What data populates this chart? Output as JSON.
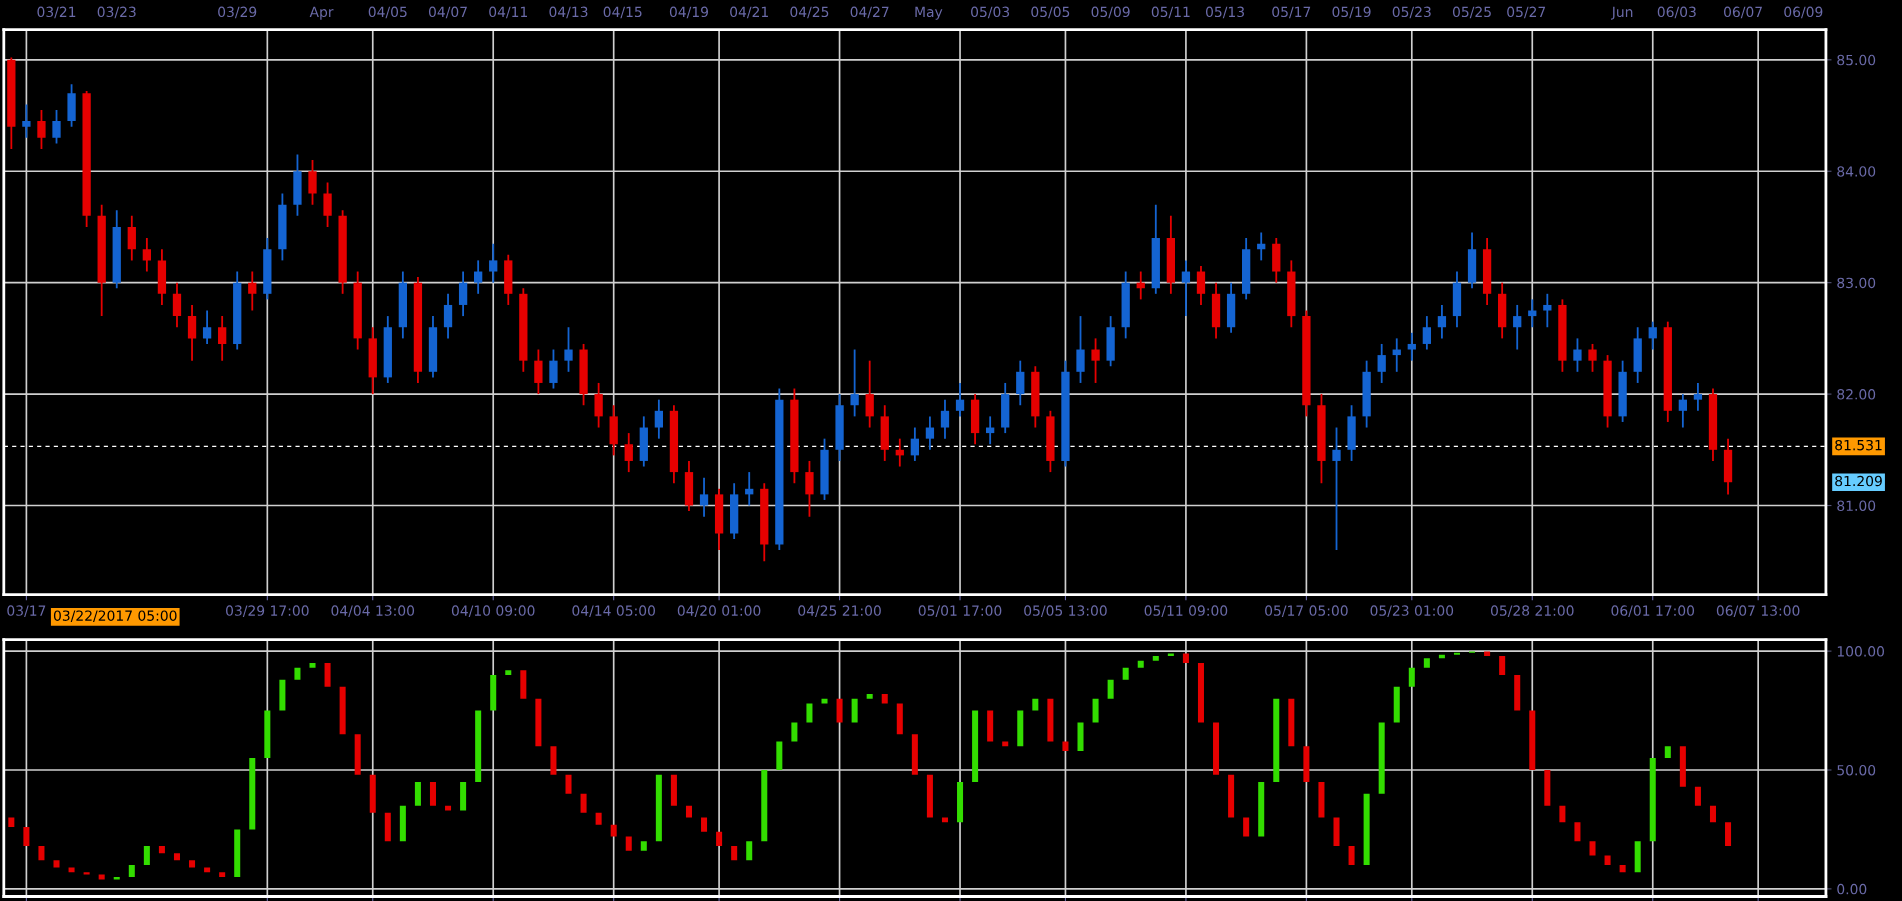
{
  "chart_data": [
    {
      "type": "candlestick",
      "grid": true,
      "categories": [
        null,
        "03/17",
        null,
        null,
        null,
        null,
        null,
        null,
        null,
        null,
        null,
        null,
        null,
        null,
        null,
        null,
        null,
        "03/29 17:00",
        null,
        null,
        null,
        null,
        null,
        null,
        "04/04 13:00",
        null,
        null,
        null,
        null,
        null,
        null,
        null,
        "04/10 09:00",
        null,
        null,
        null,
        null,
        null,
        null,
        null,
        "04/14 05:00",
        null,
        null,
        null,
        null,
        null,
        null,
        "04/20 01:00",
        null,
        null,
        null,
        null,
        null,
        null,
        null,
        "04/25 21:00",
        null,
        null,
        null,
        null,
        null,
        null,
        null,
        "05/01 17:00",
        null,
        null,
        null,
        null,
        null,
        null,
        "05/05 13:00",
        null,
        null,
        null,
        null,
        null,
        null,
        null,
        "05/11 09:00",
        null,
        null,
        null,
        null,
        null,
        null,
        null,
        "05/17 05:00",
        null,
        null,
        null,
        null,
        null,
        null,
        "05/23 01:00",
        null,
        null,
        null,
        null,
        null,
        null,
        null,
        "05/28 21:00",
        null,
        null,
        null,
        null,
        null,
        null,
        null,
        "06/01 17:00",
        null,
        null,
        null,
        null,
        null,
        null,
        "06/07 13:00",
        null,
        null,
        null,
        null
      ],
      "ohlc": [
        [
          85.0,
          85.02,
          84.2,
          84.4
        ],
        [
          84.4,
          84.6,
          84.3,
          84.45
        ],
        [
          84.45,
          84.55,
          84.2,
          84.3
        ],
        [
          84.3,
          84.55,
          84.25,
          84.45
        ],
        [
          84.45,
          84.78,
          84.4,
          84.7
        ],
        [
          84.7,
          84.72,
          83.5,
          83.6
        ],
        [
          83.6,
          83.7,
          82.7,
          83.0
        ],
        [
          83.0,
          83.65,
          82.95,
          83.5
        ],
        [
          83.5,
          83.6,
          83.2,
          83.3
        ],
        [
          83.3,
          83.4,
          83.1,
          83.2
        ],
        [
          83.2,
          83.3,
          82.8,
          82.9
        ],
        [
          82.9,
          83.0,
          82.6,
          82.7
        ],
        [
          82.7,
          82.8,
          82.3,
          82.5
        ],
        [
          82.5,
          82.75,
          82.45,
          82.6
        ],
        [
          82.6,
          82.7,
          82.3,
          82.45
        ],
        [
          82.45,
          83.1,
          82.4,
          83.0
        ],
        [
          83.0,
          83.1,
          82.75,
          82.9
        ],
        [
          82.9,
          83.4,
          82.85,
          83.3
        ],
        [
          83.3,
          83.8,
          83.2,
          83.7
        ],
        [
          83.7,
          84.15,
          83.6,
          84.0
        ],
        [
          84.0,
          84.1,
          83.7,
          83.8
        ],
        [
          83.8,
          83.9,
          83.5,
          83.6
        ],
        [
          83.6,
          83.65,
          82.9,
          83.0
        ],
        [
          83.0,
          83.1,
          82.4,
          82.5
        ],
        [
          82.5,
          82.6,
          82.0,
          82.15
        ],
        [
          82.15,
          82.7,
          82.1,
          82.6
        ],
        [
          82.6,
          83.1,
          82.5,
          83.0
        ],
        [
          83.0,
          83.05,
          82.1,
          82.2
        ],
        [
          82.2,
          82.7,
          82.15,
          82.6
        ],
        [
          82.6,
          82.9,
          82.5,
          82.8
        ],
        [
          82.8,
          83.1,
          82.7,
          83.0
        ],
        [
          83.0,
          83.2,
          82.9,
          83.1
        ],
        [
          83.1,
          83.35,
          83.0,
          83.2
        ],
        [
          83.2,
          83.25,
          82.8,
          82.9
        ],
        [
          82.9,
          82.95,
          82.2,
          82.3
        ],
        [
          82.3,
          82.4,
          82.0,
          82.1
        ],
        [
          82.1,
          82.4,
          82.05,
          82.3
        ],
        [
          82.3,
          82.6,
          82.2,
          82.4
        ],
        [
          82.4,
          82.45,
          81.9,
          82.0
        ],
        [
          82.0,
          82.1,
          81.7,
          81.8
        ],
        [
          81.8,
          81.9,
          81.45,
          81.55
        ],
        [
          81.55,
          81.65,
          81.3,
          81.4
        ],
        [
          81.4,
          81.8,
          81.35,
          81.7
        ],
        [
          81.7,
          81.95,
          81.6,
          81.85
        ],
        [
          81.85,
          81.9,
          81.2,
          81.3
        ],
        [
          81.3,
          81.4,
          80.95,
          81.0
        ],
        [
          81.0,
          81.25,
          80.9,
          81.1
        ],
        [
          81.1,
          81.15,
          80.6,
          80.75
        ],
        [
          80.75,
          81.2,
          80.7,
          81.1
        ],
        [
          81.1,
          81.3,
          81.0,
          81.15
        ],
        [
          81.15,
          81.2,
          80.5,
          80.65
        ],
        [
          80.65,
          82.05,
          80.6,
          81.95
        ],
        [
          81.95,
          82.05,
          81.2,
          81.3
        ],
        [
          81.3,
          81.4,
          80.9,
          81.1
        ],
        [
          81.1,
          81.6,
          81.05,
          81.5
        ],
        [
          81.5,
          82.0,
          81.4,
          81.9
        ],
        [
          81.9,
          82.4,
          81.8,
          82.0
        ],
        [
          82.0,
          82.3,
          81.7,
          81.8
        ],
        [
          81.8,
          81.9,
          81.4,
          81.5
        ],
        [
          81.5,
          81.6,
          81.35,
          81.45
        ],
        [
          81.45,
          81.7,
          81.4,
          81.6
        ],
        [
          81.6,
          81.8,
          81.5,
          81.7
        ],
        [
          81.7,
          81.95,
          81.6,
          81.85
        ],
        [
          81.85,
          82.1,
          81.8,
          81.95
        ],
        [
          81.95,
          82.0,
          81.55,
          81.65
        ],
        [
          81.65,
          81.8,
          81.55,
          81.7
        ],
        [
          81.7,
          82.1,
          81.65,
          82.0
        ],
        [
          82.0,
          82.3,
          81.9,
          82.2
        ],
        [
          82.2,
          82.25,
          81.7,
          81.8
        ],
        [
          81.8,
          81.85,
          81.3,
          81.4
        ],
        [
          81.4,
          82.3,
          81.35,
          82.2
        ],
        [
          82.2,
          82.7,
          82.1,
          82.4
        ],
        [
          82.4,
          82.5,
          82.1,
          82.3
        ],
        [
          82.3,
          82.7,
          82.25,
          82.6
        ],
        [
          82.6,
          83.1,
          82.5,
          83.0
        ],
        [
          83.0,
          83.1,
          82.85,
          82.95
        ],
        [
          82.95,
          83.7,
          82.9,
          83.4
        ],
        [
          83.4,
          83.6,
          82.9,
          83.0
        ],
        [
          83.0,
          83.2,
          82.7,
          83.1
        ],
        [
          83.1,
          83.15,
          82.8,
          82.9
        ],
        [
          82.9,
          83.0,
          82.5,
          82.6
        ],
        [
          82.6,
          83.0,
          82.55,
          82.9
        ],
        [
          82.9,
          83.4,
          82.85,
          83.3
        ],
        [
          83.3,
          83.45,
          83.2,
          83.35
        ],
        [
          83.35,
          83.4,
          83.0,
          83.1
        ],
        [
          83.1,
          83.2,
          82.6,
          82.7
        ],
        [
          82.7,
          82.75,
          81.8,
          81.9
        ],
        [
          81.9,
          82.0,
          81.2,
          81.4
        ],
        [
          81.4,
          81.7,
          80.6,
          81.5
        ],
        [
          81.5,
          81.9,
          81.4,
          81.8
        ],
        [
          81.8,
          82.3,
          81.7,
          82.2
        ],
        [
          82.2,
          82.45,
          82.1,
          82.35
        ],
        [
          82.35,
          82.5,
          82.2,
          82.4
        ],
        [
          82.4,
          82.55,
          82.3,
          82.45
        ],
        [
          82.45,
          82.7,
          82.4,
          82.6
        ],
        [
          82.6,
          82.8,
          82.5,
          82.7
        ],
        [
          82.7,
          83.1,
          82.6,
          83.0
        ],
        [
          83.0,
          83.45,
          82.95,
          83.3
        ],
        [
          83.3,
          83.4,
          82.8,
          82.9
        ],
        [
          82.9,
          83.0,
          82.5,
          82.6
        ],
        [
          82.6,
          82.8,
          82.4,
          82.7
        ],
        [
          82.7,
          82.85,
          82.6,
          82.75
        ],
        [
          82.75,
          82.9,
          82.6,
          82.8
        ],
        [
          82.8,
          82.85,
          82.2,
          82.3
        ],
        [
          82.3,
          82.5,
          82.2,
          82.4
        ],
        [
          82.4,
          82.45,
          82.2,
          82.3
        ],
        [
          82.3,
          82.35,
          81.7,
          81.8
        ],
        [
          81.8,
          82.3,
          81.75,
          82.2
        ],
        [
          82.2,
          82.6,
          82.1,
          82.5
        ],
        [
          82.5,
          82.65,
          82.4,
          82.6
        ],
        [
          82.6,
          82.65,
          81.75,
          81.85
        ],
        [
          81.85,
          82.0,
          81.7,
          81.95
        ],
        [
          81.95,
          82.1,
          81.85,
          82.0
        ],
        [
          82.0,
          82.05,
          81.4,
          81.5
        ],
        [
          81.5,
          81.6,
          81.1,
          81.209
        ],
        null,
        null,
        null,
        null,
        null,
        null
      ],
      "colors": [
        "#e60000",
        "#1464d2",
        "#e60000",
        "#1464d2",
        "#1464d2",
        "#e60000",
        "#e60000",
        "#1464d2",
        "#e60000",
        "#e60000",
        "#e60000",
        "#e60000",
        "#e60000",
        "#1464d2",
        "#e60000",
        "#1464d2",
        "#e60000",
        "#1464d2",
        "#1464d2",
        "#1464d2",
        "#e60000",
        "#e60000",
        "#e60000",
        "#e60000",
        "#e60000",
        "#1464d2",
        "#1464d2",
        "#e60000",
        "#1464d2",
        "#1464d2",
        "#1464d2",
        "#1464d2",
        "#1464d2",
        "#e60000",
        "#e60000",
        "#e60000",
        "#1464d2",
        "#1464d2",
        "#e60000",
        "#e60000",
        "#e60000",
        "#e60000",
        "#1464d2",
        "#1464d2",
        "#e60000",
        "#e60000",
        "#1464d2",
        "#e60000",
        "#1464d2",
        "#1464d2",
        "#e60000",
        "#1464d2",
        "#e60000",
        "#e60000",
        "#1464d2",
        "#1464d2",
        "#1464d2",
        "#e60000",
        "#e60000",
        "#e60000",
        "#1464d2",
        "#1464d2",
        "#1464d2",
        "#1464d2",
        "#e60000",
        "#1464d2",
        "#1464d2",
        "#1464d2",
        "#e60000",
        "#e60000",
        "#1464d2",
        "#1464d2",
        "#e60000",
        "#1464d2",
        "#1464d2",
        "#e60000",
        "#1464d2",
        "#e60000",
        "#1464d2",
        "#e60000",
        "#e60000",
        "#1464d2",
        "#1464d2",
        "#1464d2",
        "#e60000",
        "#e60000",
        "#e60000",
        "#e60000",
        "#1464d2",
        "#1464d2",
        "#1464d2",
        "#1464d2",
        "#1464d2",
        "#1464d2",
        "#1464d2",
        "#1464d2",
        "#1464d2",
        "#1464d2",
        "#e60000",
        "#e60000",
        "#1464d2",
        "#1464d2",
        "#1464d2",
        "#e60000",
        "#1464d2",
        "#e60000",
        "#e60000",
        "#1464d2",
        "#1464d2",
        "#1464d2",
        "#e60000",
        "#1464d2",
        "#1464d2",
        "#e60000",
        "#e60000",
        null,
        null,
        null,
        null,
        null,
        null
      ],
      "ylim": [
        80.2,
        85.27
      ],
      "yticks": [
        {
          "value": 81,
          "label": "81.00"
        },
        {
          "value": 82,
          "label": "82.00"
        },
        {
          "value": 83,
          "label": "83.00"
        },
        {
          "value": 84,
          "label": "84.00"
        },
        {
          "value": 85,
          "label": "85.00"
        }
      ],
      "ref_lines": [
        {
          "axis": "y",
          "value": 81.531,
          "label": "81.531",
          "color": "#ffffff",
          "line_style": "dashed"
        }
      ],
      "annotations": [
        "03/22/2017 05:00",
        "81.209",
        "03/21",
        "03/23",
        "03/29",
        "Apr",
        "04/05",
        "04/07",
        "04/11",
        "04/13",
        "04/15",
        "04/19",
        "04/21",
        "04/25",
        "04/27",
        "May",
        "05/03",
        "05/05",
        "05/09",
        "05/11",
        "05/13",
        "05/17",
        "05/19",
        "05/23",
        "05/25",
        "05/27",
        "Jun",
        "06/03",
        "06/07",
        "06/09"
      ]
    },
    {
      "type": "bar",
      "grid": true,
      "tick_labels": "y",
      "categories": [
        null,
        null,
        null,
        null,
        null,
        null,
        null,
        null,
        null,
        null,
        null,
        null,
        null,
        null,
        null,
        null,
        null,
        null,
        null,
        null,
        null,
        null,
        null,
        null,
        null,
        null,
        null,
        null,
        null,
        null,
        null,
        null,
        null,
        null,
        null,
        null,
        null,
        null,
        null,
        null,
        null,
        null,
        null,
        null,
        null,
        null,
        null,
        null,
        null,
        null,
        null,
        null,
        null,
        null,
        null,
        null,
        null,
        null,
        null,
        null,
        null,
        null,
        null,
        null,
        null,
        null,
        null,
        null,
        null,
        null,
        null,
        null,
        null,
        null,
        null,
        null,
        null,
        null,
        null,
        null,
        null,
        null,
        null,
        null,
        null,
        null,
        null,
        null,
        null,
        null,
        null,
        null,
        null,
        null,
        null,
        null,
        null,
        null,
        null,
        null,
        null,
        null,
        null,
        null,
        null,
        null,
        null,
        null,
        null,
        null,
        null,
        null,
        null,
        null,
        null,
        null,
        null,
        null,
        null,
        null,
        null
      ],
      "base": [
        30,
        26,
        18,
        12,
        9,
        7,
        6,
        4,
        5,
        10,
        18,
        15,
        12,
        9,
        7,
        5,
        25,
        55,
        75,
        88,
        93,
        95,
        85,
        65,
        48,
        32,
        20,
        35,
        45,
        35,
        33,
        45,
        75,
        90,
        92,
        80,
        60,
        48,
        40,
        32,
        27,
        22,
        16,
        20,
        48,
        35,
        30,
        24,
        18,
        12,
        20,
        50,
        62,
        70,
        78,
        80,
        70,
        80,
        82,
        78,
        65,
        48,
        30,
        28,
        45,
        75,
        62,
        60,
        75,
        80,
        62,
        58,
        70,
        80,
        88,
        93,
        96,
        98,
        99,
        95,
        70,
        48,
        30,
        22,
        45,
        80,
        60,
        45,
        30,
        18,
        10,
        40,
        70,
        85,
        93,
        97,
        98.5,
        99.3,
        99.8,
        98,
        90,
        75,
        50,
        35,
        28,
        20,
        14,
        10,
        7,
        20,
        55,
        60,
        43,
        35,
        28,
        null,
        null,
        null,
        null,
        null,
        null
      ],
      "values": [
        -4,
        -8,
        -6,
        -3,
        -2,
        -1,
        -2,
        1,
        5,
        8,
        -3,
        -3,
        -3,
        -2,
        -2,
        20,
        30,
        20,
        13,
        5,
        2,
        -10,
        -20,
        -17,
        -16,
        -12,
        15,
        10,
        -10,
        -2,
        12,
        30,
        15,
        2,
        -12,
        -20,
        -12,
        -8,
        -8,
        -5,
        -5,
        -6,
        4,
        28,
        -13,
        -5,
        -6,
        -6,
        -6,
        8,
        30,
        12,
        8,
        8,
        2,
        -10,
        10,
        2,
        -4,
        -13,
        -17,
        -18,
        -2,
        17,
        30,
        -13,
        -2,
        15,
        5,
        -18,
        -4,
        12,
        10,
        8,
        5,
        3,
        2,
        1,
        -4,
        -25,
        -22,
        -18,
        -8,
        23,
        35,
        -20,
        -15,
        -15,
        -12,
        -8,
        30,
        30,
        15,
        8,
        4,
        1.5,
        0.8,
        0.5,
        -1.8,
        -8,
        -15,
        -25,
        -15,
        -7,
        -8,
        -6,
        -4,
        -3,
        13,
        35,
        5,
        -17,
        -8,
        -7,
        -10,
        null,
        null,
        null,
        null,
        null,
        null
      ],
      "colors": [
        "#e60000",
        "#e60000",
        "#e60000",
        "#e60000",
        "#e60000",
        "#e60000",
        "#e60000",
        "#33dd00",
        "#33dd00",
        "#33dd00",
        "#e60000",
        "#e60000",
        "#e60000",
        "#e60000",
        "#e60000",
        "#33dd00",
        "#33dd00",
        "#33dd00",
        "#33dd00",
        "#33dd00",
        "#33dd00",
        "#e60000",
        "#e60000",
        "#e60000",
        "#e60000",
        "#e60000",
        "#33dd00",
        "#33dd00",
        "#e60000",
        "#e60000",
        "#33dd00",
        "#33dd00",
        "#33dd00",
        "#33dd00",
        "#e60000",
        "#e60000",
        "#e60000",
        "#e60000",
        "#e60000",
        "#e60000",
        "#e60000",
        "#e60000",
        "#33dd00",
        "#33dd00",
        "#e60000",
        "#e60000",
        "#e60000",
        "#e60000",
        "#e60000",
        "#33dd00",
        "#33dd00",
        "#33dd00",
        "#33dd00",
        "#33dd00",
        "#33dd00",
        "#e60000",
        "#33dd00",
        "#33dd00",
        "#e60000",
        "#e60000",
        "#e60000",
        "#e60000",
        "#e60000",
        "#33dd00",
        "#33dd00",
        "#e60000",
        "#e60000",
        "#33dd00",
        "#33dd00",
        "#e60000",
        "#e60000",
        "#33dd00",
        "#33dd00",
        "#33dd00",
        "#33dd00",
        "#33dd00",
        "#33dd00",
        "#33dd00",
        "#e60000",
        "#e60000",
        "#e60000",
        "#e60000",
        "#e60000",
        "#33dd00",
        "#33dd00",
        "#e60000",
        "#e60000",
        "#e60000",
        "#e60000",
        "#e60000",
        "#33dd00",
        "#33dd00",
        "#33dd00",
        "#33dd00",
        "#33dd00",
        "#33dd00",
        "#33dd00",
        "#33dd00",
        "#e60000",
        "#e60000",
        "#e60000",
        "#e60000",
        "#e60000",
        "#e60000",
        "#e60000",
        "#e60000",
        "#e60000",
        "#e60000",
        "#33dd00",
        "#33dd00",
        "#33dd00",
        "#e60000",
        "#e60000",
        "#e60000",
        "#e60000",
        null,
        null,
        null,
        null,
        null,
        null
      ],
      "ylim": [
        -3.2,
        104.8
      ],
      "yticks": [
        {
          "value": 0,
          "label": "0.00"
        },
        {
          "value": 50,
          "label": "50.00"
        },
        {
          "value": 100,
          "label": "100.00"
        }
      ]
    }
  ]
}
